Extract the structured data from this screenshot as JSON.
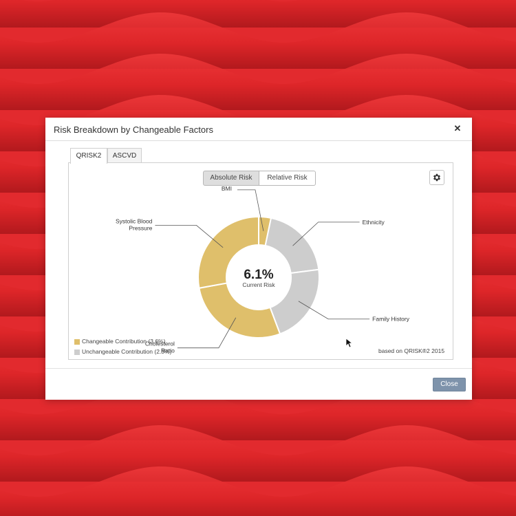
{
  "dialog": {
    "title": "Risk Breakdown by Changeable Factors",
    "close_icon": "close-icon",
    "close_glyph": "✕",
    "close_button_label": "Close"
  },
  "tabs": [
    {
      "label": "QRISK2",
      "active": true
    },
    {
      "label": "ASCVD",
      "active": false
    }
  ],
  "toggle": {
    "options": [
      {
        "label": "Absolute Risk",
        "selected": true
      },
      {
        "label": "Relative Risk",
        "selected": false
      }
    ]
  },
  "settings_icon": "gear-icon",
  "chart_data": {
    "type": "pie",
    "center_value": "6.1%",
    "center_label": "Current Risk",
    "total": 6.1,
    "slices": [
      {
        "label": "BMI",
        "value": 0.2,
        "group": "changeable"
      },
      {
        "label": "Ethnicity",
        "value": 1.2,
        "group": "unchangeable"
      },
      {
        "label": "Family History",
        "value": 1.3,
        "group": "unchangeable"
      },
      {
        "label": "Cholesterol Ratio",
        "value": 1.7,
        "group": "changeable"
      },
      {
        "label": "Systolic Blood Pressure",
        "value": 1.7,
        "group": "changeable"
      }
    ],
    "label_lines": {
      "BMI": [
        "BMI"
      ],
      "Ethnicity": [
        "Ethnicity"
      ],
      "Family History": [
        "Family History"
      ],
      "Cholesterol Ratio": [
        "Cholesterol",
        "Ratio"
      ],
      "Systolic Blood Pressure": [
        "Systolic Blood",
        "Pressure"
      ]
    },
    "colors": {
      "changeable": "#dfbf6b",
      "unchangeable": "#cdcdcd"
    },
    "legend": [
      {
        "label": "Changeable Contribution (3.6%)",
        "group": "changeable"
      },
      {
        "label": "Unchangeable Contribution (2.5%)",
        "group": "unchangeable"
      }
    ],
    "source_note": "based on QRISK®2 2015"
  },
  "colors": {
    "background": "#e22a2e",
    "button": "#7e93ab"
  }
}
